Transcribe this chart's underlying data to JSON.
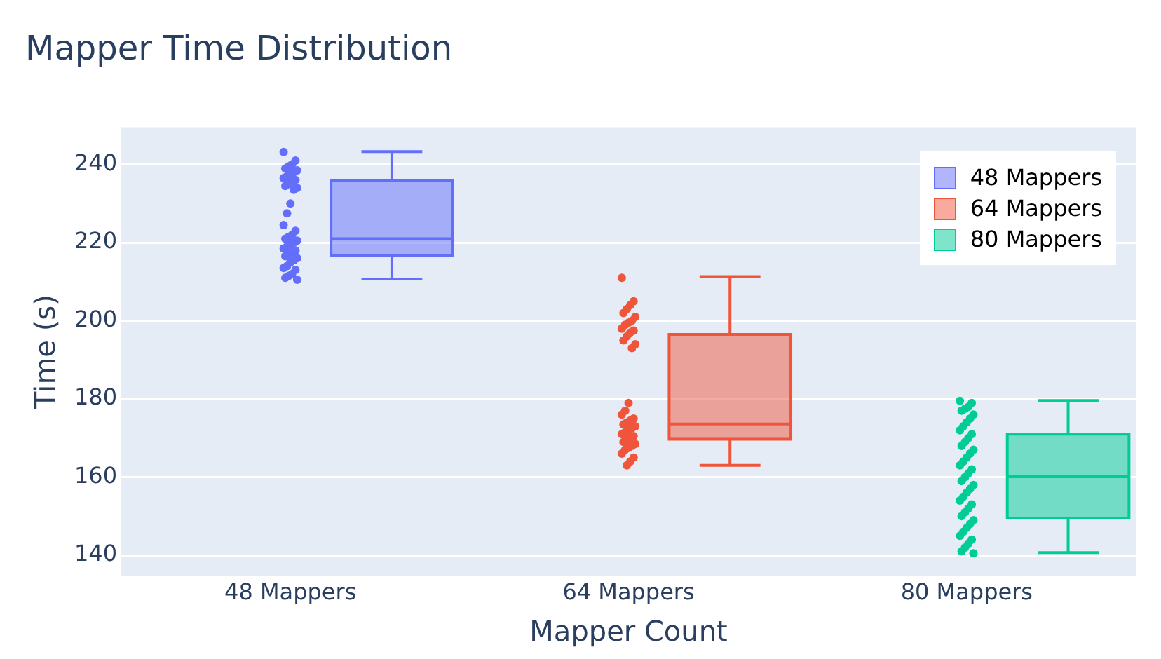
{
  "chart_data": {
    "type": "box",
    "title": "Mapper Time Distribution",
    "xlabel": "Mapper Count",
    "ylabel": "Time (s)",
    "categories": [
      "48 Mappers",
      "64 Mappers",
      "80 Mappers"
    ],
    "ylim": [
      134.7,
      249.5
    ],
    "yticks": [
      140,
      160,
      180,
      200,
      220,
      240
    ],
    "grid": "y",
    "legend": "top right",
    "marker": "circle",
    "series": [
      {
        "name": "48 Mappers",
        "type": "box",
        "color": "#636efa",
        "x": [
          "48 Mappers"
        ],
        "boxes": [
          {
            "low": 210.7,
            "q1": 216.7,
            "median": 221,
            "q3": 235.8,
            "high": 243.3
          }
        ]
      },
      {
        "name": "64 Mappers",
        "type": "box",
        "color": "#ef553b",
        "x": [
          "64 Mappers"
        ],
        "boxes": [
          {
            "low": 163,
            "q1": 169.7,
            "median": 173.6,
            "q3": 196.5,
            "high": 211.3
          }
        ]
      },
      {
        "name": "80 Mappers",
        "type": "box",
        "color": "#00cc96",
        "x": [
          "80 Mappers"
        ],
        "boxes": [
          {
            "low": 140.7,
            "q1": 149.5,
            "median": 160.1,
            "q3": 171,
            "high": 179.6
          }
        ]
      },
      {
        "type": "scatter",
        "color": "#636efa",
        "x": [
          "48 Mappers",
          "48 Mappers",
          "48 Mappers",
          "48 Mappers",
          "48 Mappers",
          "48 Mappers",
          "48 Mappers",
          "48 Mappers",
          "48 Mappers",
          "48 Mappers",
          "48 Mappers",
          "48 Mappers",
          "48 Mappers",
          "48 Mappers",
          "48 Mappers",
          "48 Mappers",
          "48 Mappers",
          "48 Mappers",
          "48 Mappers",
          "48 Mappers",
          "48 Mappers",
          "48 Mappers",
          "48 Mappers",
          "48 Mappers",
          "48 Mappers",
          "48 Mappers",
          "48 Mappers",
          "48 Mappers",
          "48 Mappers",
          "48 Mappers",
          "48 Mappers",
          "48 Mappers",
          "48 Mappers",
          "48 Mappers",
          "48 Mappers",
          "48 Mappers",
          "48 Mappers",
          "48 Mappers",
          "48 Mappers",
          "48 Mappers",
          "48 Mappers",
          "48 Mappers"
        ],
        "values": [
          243.2,
          241,
          240,
          239.5,
          239,
          238.5,
          238,
          237.5,
          237,
          236.5,
          236,
          235.5,
          235,
          234.5,
          234,
          233.5,
          230,
          227.5,
          224.5,
          223,
          222,
          221.5,
          221,
          220.5,
          220,
          219.5,
          219,
          218.5,
          218,
          217.5,
          217,
          216.5,
          216,
          215.5,
          215,
          214,
          213.5,
          213,
          212,
          211.5,
          211,
          210.5
        ]
      },
      {
        "type": "scatter",
        "color": "#ef553b",
        "x": [
          "64 Mappers",
          "64 Mappers",
          "64 Mappers",
          "64 Mappers",
          "64 Mappers",
          "64 Mappers",
          "64 Mappers",
          "64 Mappers",
          "64 Mappers",
          "64 Mappers",
          "64 Mappers",
          "64 Mappers",
          "64 Mappers",
          "64 Mappers",
          "64 Mappers",
          "64 Mappers",
          "64 Mappers",
          "64 Mappers",
          "64 Mappers",
          "64 Mappers",
          "64 Mappers",
          "64 Mappers",
          "64 Mappers",
          "64 Mappers",
          "64 Mappers",
          "64 Mappers",
          "64 Mappers",
          "64 Mappers",
          "64 Mappers",
          "64 Mappers",
          "64 Mappers",
          "64 Mappers",
          "64 Mappers",
          "64 Mappers",
          "64 Mappers",
          "64 Mappers",
          "64 Mappers",
          "64 Mappers",
          "64 Mappers",
          "64 Mappers"
        ],
        "values": [
          211,
          205,
          204,
          203,
          202,
          201,
          200,
          199.5,
          199,
          198,
          197.5,
          197,
          196,
          195,
          194,
          193,
          179,
          177,
          176,
          175,
          174.5,
          174,
          173.5,
          173,
          172.5,
          172,
          171.5,
          171,
          170.5,
          170,
          169.5,
          169,
          168.5,
          168,
          167.5,
          167,
          166,
          165,
          164,
          163
        ]
      },
      {
        "type": "scatter",
        "color": "#00cc96",
        "x": [
          "80 Mappers",
          "80 Mappers",
          "80 Mappers",
          "80 Mappers",
          "80 Mappers",
          "80 Mappers",
          "80 Mappers",
          "80 Mappers",
          "80 Mappers",
          "80 Mappers",
          "80 Mappers",
          "80 Mappers",
          "80 Mappers",
          "80 Mappers",
          "80 Mappers",
          "80 Mappers",
          "80 Mappers",
          "80 Mappers",
          "80 Mappers",
          "80 Mappers",
          "80 Mappers",
          "80 Mappers",
          "80 Mappers",
          "80 Mappers",
          "80 Mappers",
          "80 Mappers",
          "80 Mappers",
          "80 Mappers",
          "80 Mappers",
          "80 Mappers",
          "80 Mappers",
          "80 Mappers",
          "80 Mappers",
          "80 Mappers",
          "80 Mappers",
          "80 Mappers",
          "80 Mappers",
          "80 Mappers",
          "80 Mappers",
          "80 Mappers",
          "80 Mappers",
          "80 Mappers"
        ],
        "values": [
          179.5,
          179,
          178,
          177.5,
          177,
          176,
          175,
          174,
          173,
          172,
          171,
          170,
          169,
          168,
          167,
          166,
          165,
          164,
          163,
          162,
          161,
          160,
          159,
          158,
          157,
          156,
          155,
          154,
          153,
          152,
          151,
          150,
          149,
          148,
          147,
          146,
          145,
          144,
          143,
          142,
          141,
          140.5
        ]
      }
    ]
  }
}
